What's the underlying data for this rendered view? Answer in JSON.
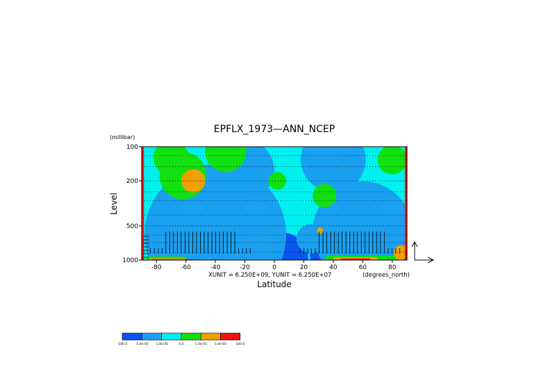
{
  "chart_data": {
    "type": "heatmap",
    "title": "EPFLX_1973—ANN_NCEP",
    "xlabel": "Latitude",
    "ylabel": "Level",
    "y_unit": "(millibar)",
    "x_unit": "(degrees_north)",
    "vector_units": "XUNIT = 6.250E+09, YUNIT = 6.250E+07",
    "xlim": [
      -90,
      90
    ],
    "ylim": [
      1000,
      100
    ],
    "y_scale": "log",
    "x_ticks": [
      -80,
      -60,
      -40,
      -20,
      0,
      20,
      40,
      60,
      80
    ],
    "x_tick_labels": [
      "-80",
      "-60",
      "-40",
      "-20",
      "0",
      "20",
      "40",
      "60",
      "80"
    ],
    "y_ticks": [
      100,
      200,
      500,
      1000
    ],
    "y_tick_labels": [
      "100",
      "200",
      "500",
      "1000"
    ],
    "grid": "dotted horizontal",
    "legend": {
      "placement": "bottom-left",
      "boundaries": [
        "-100.0",
        "-5.0e-05",
        "-1.0e-05",
        "0.0",
        "1.0e-05",
        "5.0e-05",
        "100.0"
      ],
      "colors": [
        "#0a55f0",
        "#1aa0f0",
        "#00f0f0",
        "#10e010",
        "#f0a000",
        "#f01010"
      ]
    },
    "regions": [
      {
        "level": 0,
        "type": "ellipse",
        "lat": -70,
        "p": 850,
        "dlat": 8,
        "dp": 0.07
      },
      {
        "level": 0,
        "type": "ellipse",
        "lat": -48,
        "p": 450,
        "dlat": 30,
        "dp": 0.2
      },
      {
        "level": 0,
        "type": "ellipse",
        "lat": -45,
        "p": 850,
        "dlat": 35,
        "dp": 0.1
      },
      {
        "level": 0,
        "type": "ellipse",
        "lat": 62,
        "p": 480,
        "dlat": 25,
        "dp": 0.25
      },
      {
        "level": 0,
        "type": "ellipse",
        "lat": 52,
        "p": 850,
        "dlat": 28,
        "dp": 0.1
      },
      {
        "level": 0,
        "type": "ellipse",
        "lat": 5,
        "p": 980,
        "dlat": 18,
        "dp": 0.04
      },
      {
        "level": 1,
        "type": "ellipse",
        "lat": -40,
        "p": 600,
        "dlat": 48,
        "dp": 0.42
      },
      {
        "level": 1,
        "type": "ellipse",
        "lat": 60,
        "p": 560,
        "dlat": 34,
        "dp": 0.42
      },
      {
        "level": 1,
        "type": "ellipse",
        "lat": -20,
        "p": 160,
        "dlat": 20,
        "dp": 0.22
      },
      {
        "level": 1,
        "type": "ellipse",
        "lat": 40,
        "p": 130,
        "dlat": 22,
        "dp": 0.14
      },
      {
        "level": 1,
        "type": "ellipse",
        "lat": 25,
        "p": 650,
        "dlat": 10,
        "dp": 0.2
      },
      {
        "level": 3,
        "type": "ellipse",
        "lat": -62,
        "p": 180,
        "dlat": 16,
        "dp": 0.3
      },
      {
        "level": 3,
        "type": "ellipse",
        "lat": -70,
        "p": 125,
        "dlat": 12,
        "dp": 0.1
      },
      {
        "level": 3,
        "type": "ellipse",
        "lat": 2,
        "p": 200,
        "dlat": 6,
        "dp": 0.35
      },
      {
        "level": 3,
        "type": "ellipse",
        "lat": 34,
        "p": 270,
        "dlat": 8,
        "dp": 0.36
      },
      {
        "level": 3,
        "type": "ellipse",
        "lat": -33,
        "p": 110,
        "dlat": 14,
        "dp": 0.06
      },
      {
        "level": 3,
        "type": "ellipse",
        "lat": 80,
        "p": 130,
        "dlat": 10,
        "dp": 0.15
      },
      {
        "level": 3,
        "type": "band",
        "lat0": -87,
        "lat1": -60,
        "p_top": 930
      },
      {
        "level": 3,
        "type": "band",
        "lat0": 35,
        "lat1": 87,
        "p_top": 920
      },
      {
        "level": 4,
        "type": "ellipse",
        "lat": -55,
        "p": 200,
        "dlat": 8,
        "dp": 0.08
      },
      {
        "level": 4,
        "type": "ellipse",
        "lat": 31,
        "p": 550,
        "dlat": 2,
        "dp": 0.03
      },
      {
        "level": 4,
        "type": "band",
        "lat0": -85,
        "lat1": -60,
        "p_top": 965
      },
      {
        "level": 4,
        "type": "band",
        "lat0": 40,
        "lat1": 70,
        "p_top": 945
      },
      {
        "level": 4,
        "type": "ellipse",
        "lat": 86,
        "p": 860,
        "dlat": 5,
        "dp": 0.07
      },
      {
        "level": 5,
        "type": "band",
        "lat0": -83,
        "lat1": -55,
        "p_top": 985
      },
      {
        "level": 5,
        "type": "band",
        "lat0": 45,
        "lat1": 65,
        "p_top": 970
      },
      {
        "level": 5,
        "type": "band",
        "lat0": -90,
        "lat1": -88.5,
        "p_top": 100
      },
      {
        "level": 5,
        "type": "band",
        "lat0": 88.5,
        "lat1": 90,
        "p_top": 100
      }
    ],
    "reference_arrows": {
      "placement": "right",
      "directions": [
        "up",
        "right"
      ]
    }
  }
}
